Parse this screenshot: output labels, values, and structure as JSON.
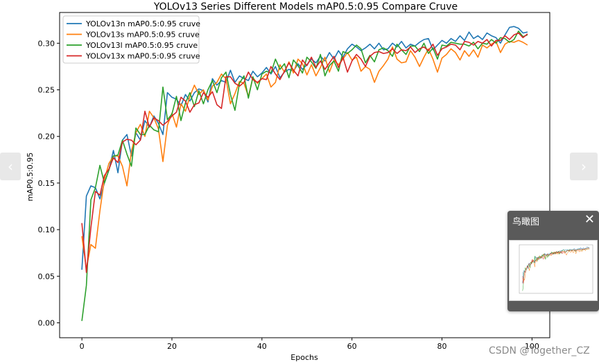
{
  "chart_data": {
    "type": "line",
    "title": "YOLOv13 Series Different Models mAP0.5:0.95 Compare Cruve",
    "xlabel": "Epochs",
    "ylabel": "mAP0.5:0.95",
    "xlim": [
      -4.95,
      103.95
    ],
    "ylim": [
      -0.016,
      0.333
    ],
    "xticks": [
      0,
      20,
      40,
      60,
      80,
      100
    ],
    "yticks": [
      0.0,
      0.05,
      0.1,
      0.15,
      0.2,
      0.25,
      0.3
    ],
    "grid": false,
    "legend_position": "upper left",
    "series": [
      {
        "name": "YOLOv13n mAP0.5:0.95 cruve",
        "color": "#1f77b4",
        "values": [
          0.057,
          0.136,
          0.147,
          0.145,
          0.133,
          0.15,
          0.164,
          0.185,
          0.161,
          0.196,
          0.202,
          0.179,
          0.204,
          0.196,
          0.217,
          0.21,
          0.222,
          0.214,
          0.202,
          0.247,
          0.242,
          0.24,
          0.233,
          0.245,
          0.238,
          0.247,
          0.251,
          0.249,
          0.237,
          0.262,
          0.255,
          0.26,
          0.258,
          0.271,
          0.258,
          0.265,
          0.262,
          0.26,
          0.27,
          0.264,
          0.268,
          0.274,
          0.267,
          0.275,
          0.263,
          0.269,
          0.272,
          0.27,
          0.278,
          0.272,
          0.277,
          0.283,
          0.279,
          0.286,
          0.281,
          0.29,
          0.283,
          0.292,
          0.285,
          0.294,
          0.299,
          0.296,
          0.292,
          0.295,
          0.299,
          0.294,
          0.3,
          0.293,
          0.294,
          0.3,
          0.296,
          0.302,
          0.295,
          0.299,
          0.297,
          0.301,
          0.304,
          0.305,
          0.293,
          0.298,
          0.303,
          0.3,
          0.305,
          0.302,
          0.308,
          0.303,
          0.312,
          0.305,
          0.308,
          0.304,
          0.311,
          0.308,
          0.306,
          0.3,
          0.309,
          0.317,
          0.318,
          0.316,
          0.311,
          0.312
        ]
      },
      {
        "name": "YOLOv13s mAP0.5:0.95 cruve",
        "color": "#ff7f0e",
        "values": [
          0.093,
          0.058,
          0.084,
          0.08,
          0.12,
          0.154,
          0.171,
          0.179,
          0.179,
          0.168,
          0.147,
          0.184,
          0.204,
          0.213,
          0.2,
          0.227,
          0.22,
          0.208,
          0.173,
          0.212,
          0.225,
          0.21,
          0.235,
          0.227,
          0.243,
          0.255,
          0.245,
          0.25,
          0.239,
          0.254,
          0.258,
          0.267,
          0.262,
          0.235,
          0.246,
          0.259,
          0.257,
          0.243,
          0.263,
          0.257,
          0.262,
          0.267,
          0.253,
          0.258,
          0.277,
          0.269,
          0.28,
          0.268,
          0.283,
          0.278,
          0.266,
          0.277,
          0.265,
          0.274,
          0.285,
          0.269,
          0.282,
          0.277,
          0.283,
          0.29,
          0.282,
          0.285,
          0.27,
          0.275,
          0.272,
          0.258,
          0.27,
          0.276,
          0.283,
          0.296,
          0.283,
          0.279,
          0.28,
          0.292,
          0.285,
          0.275,
          0.285,
          0.294,
          0.283,
          0.269,
          0.284,
          0.288,
          0.294,
          0.29,
          0.282,
          0.292,
          0.286,
          0.293,
          0.285,
          0.298,
          0.295,
          0.299,
          0.302,
          0.29,
          0.299,
          0.302,
          0.301,
          0.303,
          0.301,
          0.298
        ]
      },
      {
        "name": "YOLOv13l mAP0.5:0.95 cruve",
        "color": "#2ca02c",
        "values": [
          0.002,
          0.04,
          0.132,
          0.145,
          0.169,
          0.15,
          0.164,
          0.179,
          0.18,
          0.196,
          0.181,
          0.168,
          0.209,
          0.202,
          0.202,
          0.212,
          0.207,
          0.205,
          0.253,
          0.218,
          0.224,
          0.243,
          0.217,
          0.236,
          0.247,
          0.232,
          0.249,
          0.235,
          0.25,
          0.26,
          0.247,
          0.263,
          0.269,
          0.245,
          0.228,
          0.257,
          0.265,
          0.241,
          0.264,
          0.25,
          0.267,
          0.27,
          0.268,
          0.283,
          0.272,
          0.278,
          0.263,
          0.282,
          0.276,
          0.268,
          0.285,
          0.28,
          0.273,
          0.288,
          0.265,
          0.276,
          0.281,
          0.27,
          0.291,
          0.289,
          0.293,
          0.298,
          0.294,
          0.279,
          0.287,
          0.28,
          0.293,
          0.295,
          0.292,
          0.286,
          0.299,
          0.293,
          0.288,
          0.297,
          0.297,
          0.291,
          0.3,
          0.289,
          0.295,
          0.283,
          0.298,
          0.297,
          0.301,
          0.3,
          0.299,
          0.299,
          0.297,
          0.301,
          0.294,
          0.3,
          0.299,
          0.304,
          0.3,
          0.306,
          0.305,
          0.301,
          0.304,
          0.313,
          0.307,
          0.309
        ]
      },
      {
        "name": "YOLOv13x mAP0.5:0.95 cruve",
        "color": "#d62728",
        "values": [
          0.107,
          0.054,
          0.102,
          0.141,
          0.137,
          0.158,
          0.165,
          0.177,
          0.172,
          0.194,
          0.197,
          0.196,
          0.191,
          0.196,
          0.227,
          0.21,
          0.22,
          0.217,
          0.212,
          0.216,
          0.222,
          0.226,
          0.242,
          0.238,
          0.226,
          0.234,
          0.236,
          0.247,
          0.242,
          0.248,
          0.234,
          0.23,
          0.264,
          0.264,
          0.257,
          0.254,
          0.258,
          0.269,
          0.261,
          0.258,
          0.262,
          0.261,
          0.275,
          0.267,
          0.261,
          0.27,
          0.279,
          0.271,
          0.265,
          0.282,
          0.276,
          0.285,
          0.274,
          0.281,
          0.272,
          0.279,
          0.286,
          0.274,
          0.285,
          0.269,
          0.281,
          0.288,
          0.283,
          0.275,
          0.286,
          0.29,
          0.291,
          0.289,
          0.29,
          0.294,
          0.289,
          0.293,
          0.292,
          0.296,
          0.29,
          0.294,
          0.296,
          0.292,
          0.299,
          0.287,
          0.294,
          0.296,
          0.299,
          0.298,
          0.293,
          0.302,
          0.301,
          0.298,
          0.302,
          0.3,
          0.304,
          0.297,
          0.303,
          0.303,
          0.308,
          0.304,
          0.309,
          0.311,
          0.306,
          0.31
        ]
      }
    ]
  },
  "ui": {
    "overview_title": "鸟瞰图",
    "close_glyph": "✕",
    "prev_glyph": "‹",
    "next_glyph": "›",
    "watermark": "CSDN @Together_CZ"
  }
}
